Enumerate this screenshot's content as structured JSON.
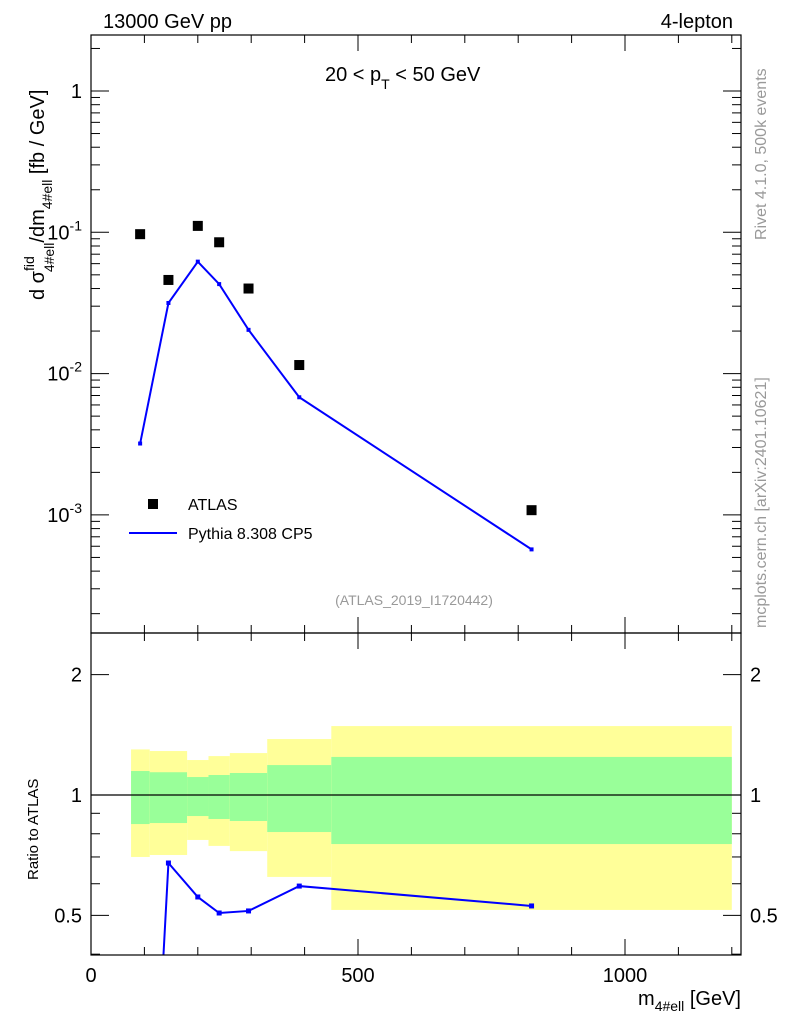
{
  "chart_data": {
    "type": "scatter",
    "title_left": "13000 GeV pp",
    "title_right": "4-lepton",
    "annotation": "20 < p_T < 50 GeV",
    "annotation_parts": {
      "a": "20 < p",
      "sub": "T",
      "b": " < 50 GeV"
    },
    "analysis_id": "(ATLAS_2019_I1720442)",
    "side_text_top": "Rivet 4.1.0,  500k events",
    "side_text_bottom": "mcplots.cern.ch [arXiv:2401.10621]",
    "ylabel": "d σ^fid_4#ell / dm_4#ell [fb / GeV]",
    "ylabel_parts": {
      "d": "d σ",
      "sup": "fid",
      "sub": "4#ell",
      "mid": "/dm",
      "sub2": "4#ell",
      "unit": " [fb / GeV]"
    },
    "xlabel": "m_4#ell [GeV]",
    "xlabel_parts": {
      "m": "m",
      "sub": "4#ell",
      "unit": " [GeV]"
    },
    "ratio_ylabel": "Ratio to ATLAS",
    "xlim": [
      0,
      1217
    ],
    "ylim": [
      0.000146,
      2.49
    ],
    "yscale": "log",
    "ratio_ylim": [
      0.398,
      2.54
    ],
    "x_ticks": [
      "0",
      "500",
      "1000"
    ],
    "x_tick_values": [
      0,
      500,
      1000
    ],
    "y_ticks": [
      "1",
      "10^-1",
      "10^-2",
      "10^-3"
    ],
    "y_tick_values": [
      1,
      0.1,
      0.01,
      0.001
    ],
    "ratio_ticks": [
      "2",
      "1",
      "0.5"
    ],
    "ratio_tick_values": [
      2,
      1,
      0.5
    ],
    "legend": [
      {
        "name": "ATLAS",
        "marker": "square"
      },
      {
        "name": "Pythia 8.308 CP5",
        "marker": "line"
      }
    ],
    "legend_placement": "bottom-left",
    "bin_edges": [
      75,
      110,
      180,
      220,
      260,
      330,
      450,
      1200
    ],
    "series": [
      {
        "name": "ATLAS",
        "x": [
          92,
          145,
          200,
          240,
          295,
          390,
          825
        ],
        "values": [
          0.097,
          0.046,
          0.111,
          0.085,
          0.04,
          0.0115,
          0.00108
        ],
        "color": "#000000"
      },
      {
        "name": "Pythia 8.308 CP5",
        "x": [
          92,
          145,
          200,
          240,
          295,
          390,
          825
        ],
        "values": [
          0.0032,
          0.0316,
          0.062,
          0.043,
          0.0204,
          0.0068,
          0.00057
        ],
        "color": "#0000ff"
      }
    ],
    "ratio": {
      "mc": [
        0.033,
        0.676,
        0.556,
        0.507,
        0.513,
        0.592,
        0.528
      ],
      "band_inner": {
        "color": "#99ff99",
        "lo": [
          0.846,
          0.851,
          0.886,
          0.871,
          0.861,
          0.808,
          0.754
        ],
        "hi": [
          1.148,
          1.14,
          1.109,
          1.122,
          1.135,
          1.188,
          1.245
        ]
      },
      "band_outer": {
        "color": "#ffff99",
        "lo": [
          0.7,
          0.708,
          0.772,
          0.746,
          0.724,
          0.624,
          0.516
        ],
        "hi": [
          1.3,
          1.288,
          1.223,
          1.251,
          1.273,
          1.38,
          1.487
        ]
      }
    }
  }
}
